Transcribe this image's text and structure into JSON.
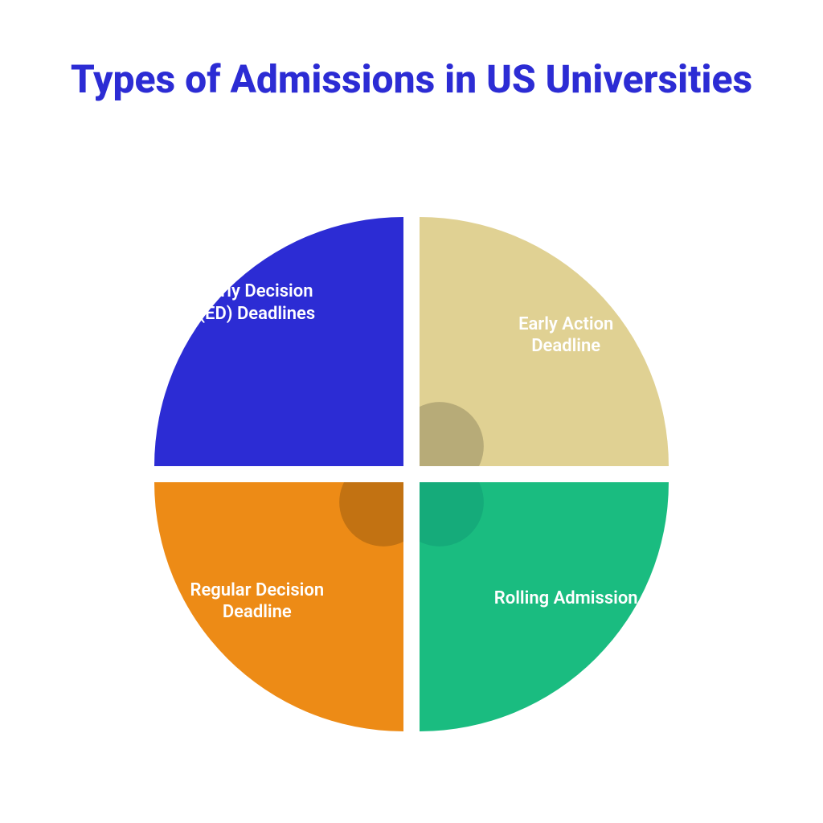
{
  "title": {
    "text": "Types of Admissions in US Universities",
    "color": "#2c2cd4",
    "fontsize": 48
  },
  "diagram": {
    "type": "infographic",
    "shape": "four-petal-circle",
    "size": 640,
    "gap": 10,
    "background_color": "#ffffff",
    "label_color": "#ffffff",
    "label_fontsize": 22,
    "accent_circle_radius": 55,
    "accent_opacity": 0.18,
    "petals": [
      {
        "position": "top-left",
        "label": "Early Decision (ED) Deadlines",
        "fill": "#2c2cd4",
        "accent": false
      },
      {
        "position": "top-right",
        "label": "Early Action Deadline",
        "fill": "#e0d193",
        "accent": true,
        "accent_color": "#000000"
      },
      {
        "position": "bottom-left",
        "label": "Regular Decision Deadline",
        "fill": "#ed8b16",
        "accent": true,
        "accent_color": "#000000"
      },
      {
        "position": "bottom-right",
        "label": "Rolling Admission",
        "fill": "#1abc80",
        "accent": true,
        "accent_color": "#006060"
      }
    ]
  }
}
